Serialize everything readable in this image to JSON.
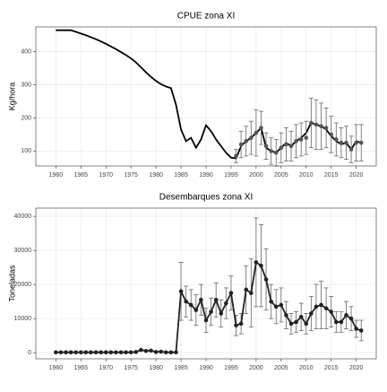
{
  "chart_data": [
    {
      "type": "line",
      "title": "CPUE zona XI",
      "ylabel": "Kg/hora",
      "xlim": [
        1956,
        2024
      ],
      "xticks": [
        1960,
        1965,
        1970,
        1975,
        1980,
        1985,
        1990,
        1995,
        2000,
        2005,
        2010,
        2015,
        2020
      ],
      "ylim": [
        55,
        475
      ],
      "yticks": [
        100,
        200,
        300,
        400
      ],
      "grid": true,
      "series": [
        {
          "color": "#000000",
          "line": true,
          "markers": false,
          "x": [
            1960,
            1961,
            1962,
            1963,
            1964,
            1965,
            1966,
            1967,
            1968,
            1969,
            1970,
            1971,
            1972,
            1973,
            1974,
            1975,
            1976,
            1977,
            1978,
            1979,
            1980,
            1981,
            1982,
            1983,
            1984,
            1985,
            1986,
            1987,
            1988,
            1989,
            1990,
            1991,
            1992,
            1993,
            1994,
            1995,
            1996,
            1997,
            1998,
            1999,
            2000,
            2001,
            2002,
            2003,
            2004,
            2005,
            2006,
            2007,
            2008,
            2009,
            2010,
            2011,
            2012,
            2013,
            2014,
            2015,
            2016,
            2017,
            2018,
            2019,
            2020,
            2021
          ],
          "values": [
            465,
            465,
            465,
            465,
            460,
            455,
            450,
            444,
            438,
            431,
            424,
            416,
            408,
            399,
            390,
            380,
            368,
            353,
            338,
            324,
            312,
            302,
            295,
            290,
            240,
            165,
            130,
            140,
            110,
            135,
            178,
            160,
            135,
            115,
            95,
            80,
            78,
            115,
            130,
            140,
            155,
            170,
            110,
            100,
            95,
            110,
            125,
            115,
            130,
            140,
            155,
            185,
            180,
            175,
            165,
            145,
            130,
            120,
            125,
            105,
            130,
            125
          ]
        },
        {
          "color": "#555555",
          "line": false,
          "markers": true,
          "x": [
            1996,
            1997,
            1998,
            1999,
            2000,
            2001,
            2002,
            2003,
            2004,
            2005,
            2006,
            2007,
            2008,
            2009,
            2010,
            2011,
            2012,
            2013,
            2014,
            2015,
            2016,
            2017,
            2018,
            2019,
            2020,
            2021
          ],
          "values": [
            85,
            120,
            130,
            140,
            155,
            170,
            115,
            100,
            95,
            110,
            120,
            115,
            130,
            135,
            140,
            185,
            180,
            175,
            170,
            150,
            135,
            125,
            125,
            105,
            125,
            125
          ],
          "errors": [
            20,
            40,
            45,
            50,
            70,
            50,
            40,
            40,
            40,
            45,
            50,
            45,
            50,
            50,
            50,
            75,
            75,
            70,
            60,
            55,
            50,
            45,
            50,
            40,
            55,
            55
          ]
        }
      ]
    },
    {
      "type": "line",
      "title": "Desembarques zona XI",
      "ylabel": "Toneladas",
      "xlim": [
        1956,
        2024
      ],
      "xticks": [
        1960,
        1965,
        1970,
        1975,
        1980,
        1985,
        1990,
        1995,
        2000,
        2005,
        2010,
        2015,
        2020
      ],
      "ylim": [
        -1800,
        42400
      ],
      "yticks": [
        0,
        10000,
        20000,
        30000,
        40000
      ],
      "grid": true,
      "series": [
        {
          "color": "#222222",
          "line": true,
          "markers": true,
          "x": [
            1960,
            1961,
            1962,
            1963,
            1964,
            1965,
            1966,
            1967,
            1968,
            1969,
            1970,
            1971,
            1972,
            1973,
            1974,
            1975,
            1976,
            1977,
            1978,
            1979,
            1980,
            1981,
            1982,
            1983,
            1984,
            1985,
            1986,
            1987,
            1988,
            1989,
            1990,
            1991,
            1992,
            1993,
            1994,
            1995,
            1996,
            1997,
            1998,
            1999,
            2000,
            2001,
            2002,
            2003,
            2004,
            2005,
            2006,
            2007,
            2008,
            2009,
            2010,
            2011,
            2012,
            2013,
            2014,
            2015,
            2016,
            2017,
            2018,
            2019,
            2020,
            2021
          ],
          "values": [
            100,
            100,
            100,
            100,
            100,
            100,
            100,
            100,
            100,
            100,
            100,
            100,
            100,
            100,
            100,
            100,
            200,
            800,
            500,
            600,
            200,
            300,
            100,
            100,
            100,
            18000,
            15000,
            14000,
            12500,
            15500,
            9500,
            12000,
            15500,
            11500,
            14500,
            17500,
            8000,
            8500,
            18500,
            17500,
            26500,
            25500,
            21500,
            15000,
            13500,
            14000,
            11000,
            8500,
            9000,
            10500,
            8500,
            11500,
            13500,
            14000,
            13000,
            12000,
            9000,
            9000,
            11000,
            10000,
            7000,
            6500
          ],
          "errors": [
            null,
            null,
            null,
            null,
            null,
            null,
            null,
            null,
            null,
            null,
            null,
            null,
            null,
            null,
            null,
            null,
            null,
            null,
            null,
            null,
            null,
            null,
            null,
            null,
            null,
            8500,
            4500,
            4500,
            4500,
            4500,
            3500,
            4000,
            5000,
            4000,
            4500,
            5000,
            3000,
            3000,
            7000,
            10000,
            13000,
            12000,
            9000,
            5000,
            5000,
            5000,
            4000,
            3000,
            3000,
            4000,
            3000,
            5000,
            6500,
            7000,
            6000,
            4500,
            3000,
            3000,
            4000,
            3500,
            2500,
            3000
          ]
        }
      ]
    }
  ]
}
